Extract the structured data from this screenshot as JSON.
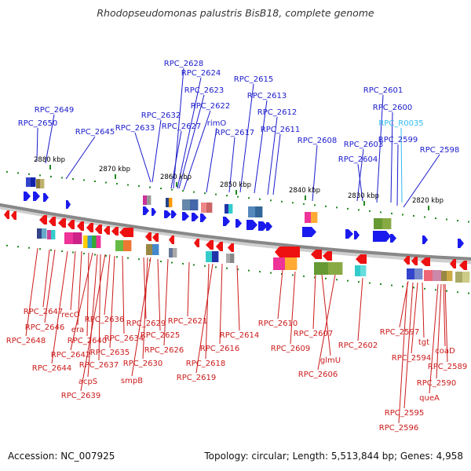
{
  "title": "Rhodopseudomonas palustris BisB18, complete genome",
  "footer": {
    "accession": "Accession: NC_007925",
    "summary": "Topology: circular; Length: 5,513,844 bp; Genes: 4,958"
  },
  "colors": {
    "top_label": "#1a1acc",
    "bottom_label": "#cc1a1a",
    "rna_label": "#33bbee",
    "top_arrow": "#1a1aee",
    "bottom_arrow": "#ee1111",
    "backbone": "#888888",
    "tick": "#228822"
  },
  "scale_labels": [
    "2880 kbp",
    "2870 kbp",
    "2860 kbp",
    "2850 kbp",
    "2840 kbp",
    "2830 kbp",
    "2820 kbp"
  ],
  "top_labels": [
    "RPC_2649",
    "RPC_2650",
    "RPC_2645",
    "RPC_2633",
    "RPC_2632",
    "RPC_2628",
    "RPC_2624",
    "RPC_2623",
    "RPC_2622",
    "RPC_2627",
    "rimO",
    "RPC_2615",
    "RPC_2613",
    "RPC_2617",
    "RPC_2612",
    "RPC_2611",
    "RPC_2608",
    "RPC_2603",
    "RPC_2604",
    "RPC_2601",
    "RPC_2600",
    "RPC_R0035",
    "RPC_2599",
    "RPC_2598"
  ],
  "bottom_labels": [
    "RPC_2647",
    "recO",
    "RPC_2646",
    "era",
    "RPC_2648",
    "RPC_2640",
    "RPC_2636",
    "RPC_2642",
    "RPC_2644",
    "RPC_2637",
    "acpS",
    "RPC_2639",
    "RPC_2635",
    "RPC_2634",
    "RPC_2629",
    "RPC_2630",
    "smpB",
    "RPC_2625",
    "RPC_2626",
    "RPC_2621",
    "RPC_2616",
    "RPC_2618",
    "RPC_2619",
    "RPC_2614",
    "RPC_2610",
    "RPC_2609",
    "RPC_2607",
    "glmU",
    "RPC_2606",
    "RPC_2602",
    "RPC_2597",
    "tgt",
    "RPC_2594",
    "coaD",
    "RPC_2589",
    "RPC_2590",
    "queA",
    "RPC_2595",
    "RPC_2596"
  ]
}
